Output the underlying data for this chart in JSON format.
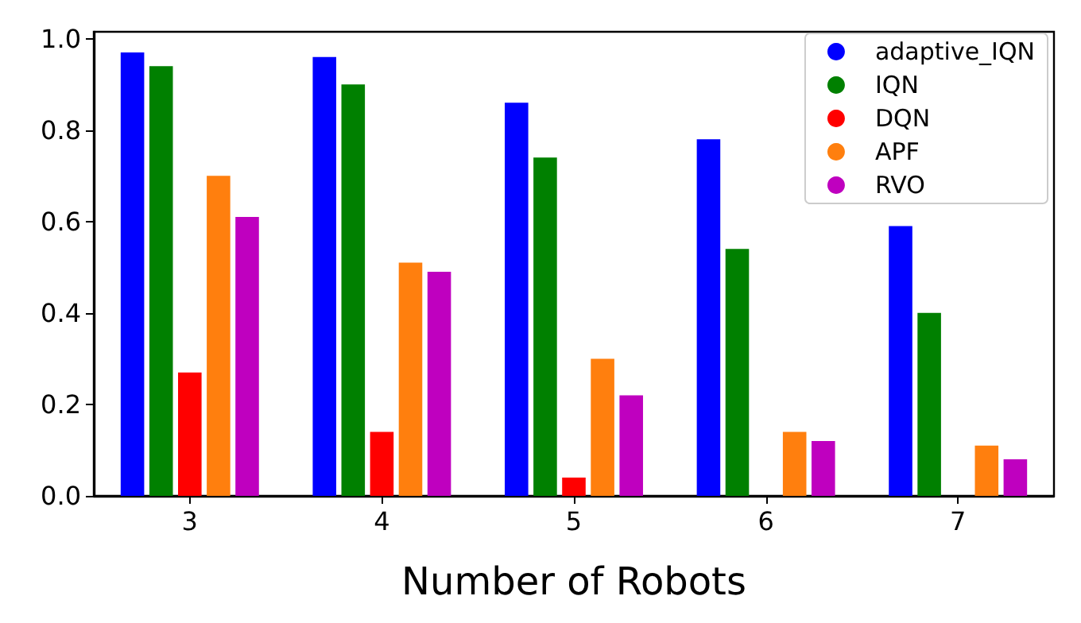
{
  "chart_data": {
    "type": "bar",
    "xlabel": "Number of Robots",
    "categories": [
      "3",
      "4",
      "5",
      "6",
      "7"
    ],
    "series": [
      {
        "name": "adaptive_IQN",
        "color": "#0000ff",
        "values": [
          0.97,
          0.96,
          0.86,
          0.78,
          0.59
        ]
      },
      {
        "name": "IQN",
        "color": "#008000",
        "values": [
          0.94,
          0.9,
          0.74,
          0.54,
          0.4
        ]
      },
      {
        "name": "DQN",
        "color": "#ff0000",
        "values": [
          0.27,
          0.14,
          0.04,
          0,
          0
        ]
      },
      {
        "name": "APF",
        "color": "#ff7f0e",
        "values": [
          0.7,
          0.51,
          0.3,
          0.14,
          0.11
        ]
      },
      {
        "name": "RVO",
        "color": "#bf00bf",
        "values": [
          0.61,
          0.49,
          0.22,
          0.12,
          0.08
        ]
      }
    ],
    "ylim": [
      0,
      1.015
    ],
    "yticks": [
      {
        "value": 0,
        "label": "0.0"
      },
      {
        "value": 0.2,
        "label": "0.2"
      },
      {
        "value": 0.4,
        "label": "0.4"
      },
      {
        "value": 0.6,
        "label": "0.6"
      },
      {
        "value": 0.8,
        "label": "0.8"
      },
      {
        "value": 1,
        "label": "1.0"
      }
    ],
    "grid": false,
    "legend": "top right"
  }
}
